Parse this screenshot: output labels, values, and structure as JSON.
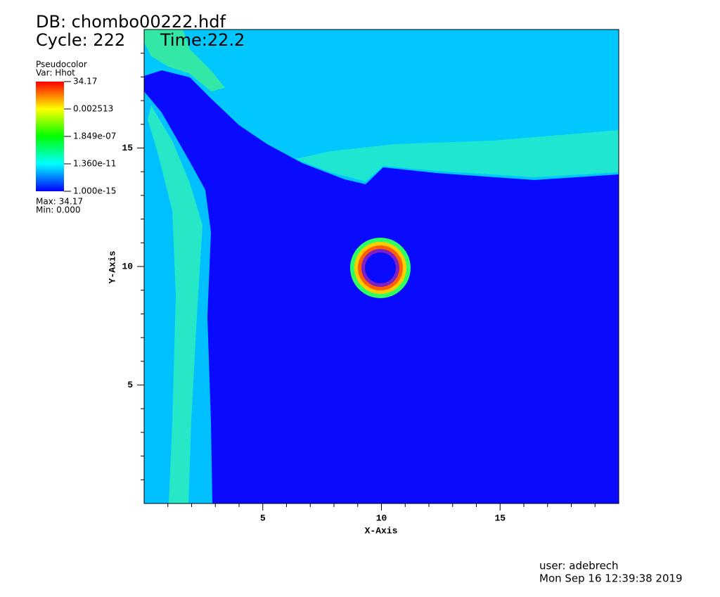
{
  "chart_data": {
    "type": "pseudocolor",
    "db_label": "DB: chombo00222.hdf",
    "cycle_label": "Cycle: 222",
    "time_label": "Time:22.2",
    "plot_label": "Pseudocolor",
    "var_label": "Var: Hhot",
    "max_label": "Max:  34.17",
    "min_label": "Min:  0.000",
    "x_label": "X-Axis",
    "y_label": "Y-Axis",
    "xlim": [
      0,
      20
    ],
    "ylim": [
      0,
      20
    ],
    "xticks": [
      5,
      10,
      15
    ],
    "yticks": [
      5,
      10,
      15
    ],
    "xminorticks": [
      1,
      2,
      3,
      4,
      6,
      7,
      8,
      9,
      11,
      12,
      13,
      14,
      16,
      17,
      18,
      19
    ],
    "yminorticks": [
      1,
      2,
      3,
      4,
      6,
      7,
      8,
      9,
      11,
      12,
      13,
      14,
      16,
      17,
      18,
      19
    ],
    "colorbar": {
      "scale": "log",
      "lim": [
        1e-15,
        34.17
      ],
      "ticks": [
        34.17,
        0.002513,
        {
          "value": 1.849e-07,
          "label": "1.849e-07"
        },
        {
          "value": 1.36e-11,
          "label": "1.360e-11"
        },
        {
          "value": 1e-15,
          "label": "1.000e-15"
        }
      ]
    },
    "user_label": "user: adebrech",
    "date_label": "Mon Sep 16 12:39:38 2019"
  }
}
